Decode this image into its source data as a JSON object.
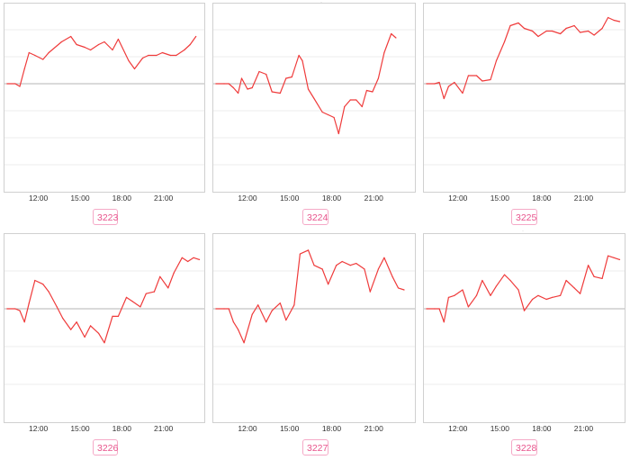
{
  "colors": {
    "line": "#ef3b3b",
    "frame": "#d0d0d0",
    "grid": "#ececec",
    "baseline": "#b4b4b4",
    "badge": "#e8548c"
  },
  "chart_data": [
    {
      "type": "line",
      "label": "3223",
      "x_ticks": [
        "12:00",
        "15:00",
        "18:00",
        "21:00"
      ],
      "x": [
        "09:45",
        "10:20",
        "10:40",
        "11:00",
        "11:20",
        "11:45",
        "12:20",
        "12:45",
        "13:40",
        "14:20",
        "14:45",
        "15:20",
        "15:45",
        "16:20",
        "16:45",
        "17:20",
        "17:45",
        "18:30",
        "18:55",
        "19:30",
        "19:55",
        "20:30",
        "20:55",
        "21:30",
        "21:55",
        "22:30",
        "22:55",
        "23:20"
      ],
      "values": [
        0,
        0,
        -0.1,
        0.55,
        1.15,
        1.05,
        0.9,
        1.15,
        1.55,
        1.75,
        1.45,
        1.35,
        1.25,
        1.45,
        1.55,
        1.25,
        1.65,
        0.85,
        0.55,
        0.95,
        1.05,
        1.05,
        1.15,
        1.05,
        1.05,
        1.25,
        1.45,
        1.75
      ],
      "ylim": [
        -4,
        3
      ]
    },
    {
      "type": "line",
      "label": "3224",
      "x_ticks": [
        "12:00",
        "15:00",
        "18:00",
        "21:00"
      ],
      "x": [
        "09:45",
        "10:20",
        "10:40",
        "11:00",
        "11:20",
        "11:35",
        "12:00",
        "12:20",
        "12:50",
        "13:20",
        "13:45",
        "14:20",
        "14:45",
        "15:10",
        "15:40",
        "15:55",
        "16:20",
        "16:45",
        "17:20",
        "17:45",
        "18:10",
        "18:30",
        "18:55",
        "19:20",
        "19:45",
        "20:10",
        "20:30",
        "20:55",
        "21:20",
        "21:45",
        "22:15",
        "22:35"
      ],
      "values": [
        0,
        0,
        0,
        -0.15,
        -0.35,
        0.2,
        -0.2,
        -0.15,
        0.45,
        0.35,
        -0.3,
        -0.35,
        0.2,
        0.25,
        1.05,
        0.85,
        -0.2,
        -0.55,
        -1.05,
        -1.15,
        -1.25,
        -1.85,
        -0.85,
        -0.6,
        -0.6,
        -0.85,
        -0.25,
        -0.3,
        0.2,
        1.15,
        1.85,
        1.7
      ],
      "ylim": [
        -4,
        3
      ]
    },
    {
      "type": "line",
      "label": "3225",
      "x_ticks": [
        "12:00",
        "15:00",
        "18:00",
        "21:00"
      ],
      "x": [
        "09:45",
        "10:20",
        "10:40",
        "11:00",
        "11:20",
        "11:45",
        "12:20",
        "12:45",
        "13:20",
        "13:45",
        "14:20",
        "14:45",
        "15:20",
        "15:45",
        "16:20",
        "16:45",
        "17:20",
        "17:45",
        "18:20",
        "18:45",
        "19:20",
        "19:45",
        "20:20",
        "20:45",
        "21:20",
        "21:45",
        "22:20",
        "22:45",
        "23:10",
        "23:35"
      ],
      "values": [
        0,
        0,
        0.05,
        -0.55,
        -0.1,
        0.05,
        -0.35,
        0.3,
        0.3,
        0.1,
        0.15,
        0.85,
        1.55,
        2.15,
        2.25,
        2.05,
        1.95,
        1.75,
        1.95,
        1.95,
        1.85,
        2.05,
        2.15,
        1.9,
        1.95,
        1.8,
        2.05,
        2.45,
        2.35,
        2.3
      ],
      "ylim": [
        -4,
        3
      ]
    },
    {
      "type": "line",
      "label": "3226",
      "x_ticks": [
        "12:00",
        "15:00",
        "18:00",
        "21:00"
      ],
      "x": [
        "09:45",
        "10:20",
        "10:40",
        "11:00",
        "11:20",
        "11:45",
        "12:20",
        "12:45",
        "13:20",
        "13:45",
        "14:20",
        "14:45",
        "15:20",
        "15:45",
        "16:20",
        "16:45",
        "17:20",
        "17:45",
        "18:20",
        "18:45",
        "19:20",
        "19:45",
        "20:20",
        "20:45",
        "21:20",
        "21:45",
        "22:20",
        "22:45",
        "23:10",
        "23:35"
      ],
      "values": [
        0,
        0,
        -0.05,
        -0.35,
        0.15,
        0.75,
        0.65,
        0.45,
        0.05,
        -0.25,
        -0.55,
        -0.35,
        -0.75,
        -0.45,
        -0.65,
        -0.9,
        -0.2,
        -0.2,
        0.3,
        0.2,
        0.05,
        0.4,
        0.45,
        0.85,
        0.55,
        0.95,
        1.35,
        1.25,
        1.35,
        1.3
      ],
      "ylim": [
        -3,
        2
      ]
    },
    {
      "type": "line",
      "label": "3227",
      "x_ticks": [
        "12:00",
        "15:00",
        "18:00",
        "21:00"
      ],
      "x": [
        "09:45",
        "10:20",
        "10:40",
        "11:00",
        "11:20",
        "11:45",
        "12:20",
        "12:45",
        "13:20",
        "13:45",
        "14:20",
        "14:45",
        "15:20",
        "15:45",
        "16:20",
        "16:45",
        "17:20",
        "17:45",
        "18:20",
        "18:45",
        "19:20",
        "19:45",
        "20:20",
        "20:45",
        "21:20",
        "21:45",
        "22:20",
        "22:45",
        "23:10"
      ],
      "values": [
        0,
        0,
        0,
        -0.35,
        -0.55,
        -0.9,
        -0.15,
        0.1,
        -0.35,
        -0.05,
        0.15,
        -0.3,
        0.1,
        1.45,
        1.55,
        1.15,
        1.05,
        0.65,
        1.15,
        1.25,
        1.15,
        1.2,
        1.05,
        0.45,
        1.05,
        1.35,
        0.85,
        0.55,
        0.5
      ],
      "ylim": [
        -3,
        2
      ]
    },
    {
      "type": "line",
      "label": "3228",
      "x_ticks": [
        "12:00",
        "15:00",
        "18:00",
        "21:00"
      ],
      "x": [
        "09:45",
        "10:20",
        "10:40",
        "11:00",
        "11:20",
        "11:45",
        "12:20",
        "12:45",
        "13:20",
        "13:45",
        "14:20",
        "14:45",
        "15:20",
        "15:45",
        "16:20",
        "16:45",
        "17:20",
        "17:45",
        "18:20",
        "18:45",
        "19:20",
        "19:45",
        "20:20",
        "20:45",
        "21:20",
        "21:45",
        "22:20",
        "22:45",
        "23:10",
        "23:35"
      ],
      "values": [
        0,
        0,
        0,
        -0.35,
        0.3,
        0.35,
        0.5,
        0.05,
        0.35,
        0.75,
        0.35,
        0.6,
        0.9,
        0.75,
        0.5,
        -0.05,
        0.25,
        0.35,
        0.25,
        0.3,
        0.35,
        0.75,
        0.55,
        0.4,
        1.15,
        0.85,
        0.8,
        1.4,
        1.35,
        1.3
      ],
      "ylim": [
        -3,
        2
      ]
    }
  ]
}
